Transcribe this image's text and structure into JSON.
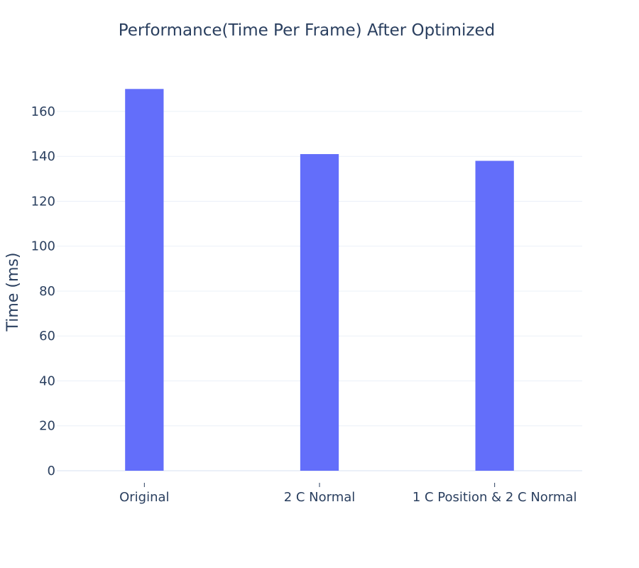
{
  "chart_data": {
    "type": "bar",
    "title": "Performance(Time Per Frame)  After Optimized",
    "xlabel": "",
    "ylabel": "Time (ms)",
    "categories": [
      "Original",
      "2 C Normal",
      "1 C Position & 2 C Normal"
    ],
    "values": [
      170,
      141,
      138
    ],
    "ylim": [
      0,
      178
    ],
    "yticks": [
      0,
      20,
      40,
      60,
      80,
      100,
      120,
      140,
      160
    ],
    "grid": true,
    "legend": "none",
    "bar_color": "#636efa"
  }
}
